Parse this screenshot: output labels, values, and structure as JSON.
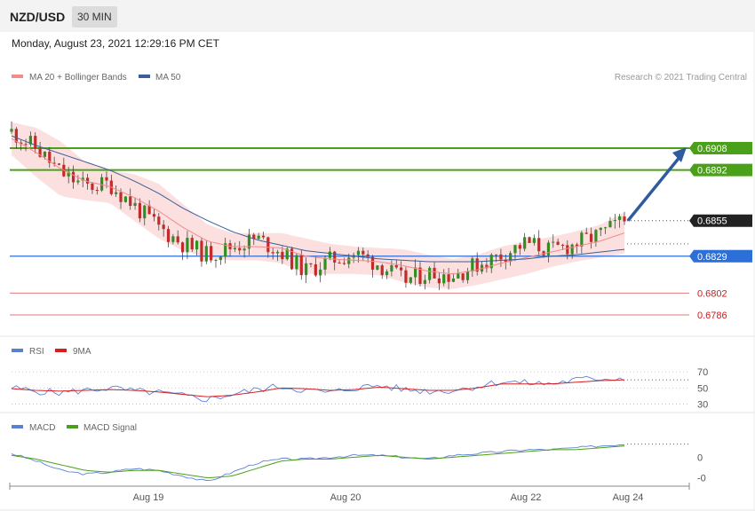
{
  "header": {
    "pair": "NZD/USD",
    "timeframe": "30 MIN",
    "datetime": "Monday, August 23, 2021 12:29:16 PM CET"
  },
  "legend": {
    "ma20_label": "MA 20 + Bollinger Bands",
    "ma50_label": "MA 50",
    "ma20_color": "#f48a8a",
    "ma50_color": "#3a5f9a",
    "credit": "Research © 2021 Trading Central"
  },
  "colors": {
    "resistance": "#4aa019",
    "support_blue": "#2c6fd6",
    "support_red": "#e07a7a",
    "bull": "#2f8f1f",
    "bear": "#c42a2a",
    "band": "#fcd9d9",
    "arrow": "#2e5a9e",
    "current": "#222222"
  },
  "chart_data": [
    {
      "type": "candlestick",
      "pane": "price",
      "ylim": [
        0.6775,
        0.6945
      ],
      "x_ticks": [
        "Aug 19",
        "Aug 20",
        "Aug 22",
        "Aug 24"
      ],
      "levels": [
        {
          "value": 0.6908,
          "label": "0.6908",
          "kind": "resistance"
        },
        {
          "value": 0.6892,
          "label": "0.6892",
          "kind": "resistance"
        },
        {
          "value": 0.6855,
          "label": "0.6855",
          "kind": "current"
        },
        {
          "value": 0.6829,
          "label": "0.6829",
          "kind": "support"
        },
        {
          "value": 0.6802,
          "label": "0.6802",
          "kind": "support-minor"
        },
        {
          "value": 0.6786,
          "label": "0.6786",
          "kind": "support-minor"
        }
      ],
      "close_path": [
        0.692,
        0.6908,
        0.689,
        0.688,
        0.6882,
        0.6866,
        0.685,
        0.6838,
        0.683,
        0.6836,
        0.6842,
        0.6832,
        0.6818,
        0.6826,
        0.6831,
        0.6823,
        0.6811,
        0.6817,
        0.6815,
        0.6823,
        0.683,
        0.6839,
        0.6833,
        0.6838,
        0.6845,
        0.6855
      ],
      "ma20_path": [
        0.6915,
        0.6905,
        0.6893,
        0.6884,
        0.688,
        0.6872,
        0.6862,
        0.685,
        0.684,
        0.6836,
        0.6836,
        0.6835,
        0.6829,
        0.6827,
        0.6826,
        0.6825,
        0.6822,
        0.6818,
        0.6816,
        0.6819,
        0.6824,
        0.6828,
        0.6832,
        0.6836,
        0.684,
        0.6846
      ],
      "ma50_path": [
        0.6917,
        0.691,
        0.6904,
        0.6898,
        0.6892,
        0.6884,
        0.6875,
        0.6864,
        0.6855,
        0.6847,
        0.6841,
        0.6837,
        0.6833,
        0.6831,
        0.6829,
        0.6827,
        0.6826,
        0.6825,
        0.6825,
        0.6825,
        0.6826,
        0.6827,
        0.6829,
        0.683,
        0.6832,
        0.6834
      ],
      "band_width_path": [
        0.0012,
        0.0018,
        0.002,
        0.0014,
        0.0012,
        0.0017,
        0.002,
        0.0017,
        0.0012,
        0.001,
        0.001,
        0.0011,
        0.0013,
        0.0011,
        0.001,
        0.001,
        0.0012,
        0.0012,
        0.0011,
        0.0011,
        0.0012,
        0.0012,
        0.0011,
        0.0011,
        0.0012,
        0.0015
      ],
      "projection": {
        "from": 0.6855,
        "to": 0.6908
      }
    },
    {
      "type": "line",
      "pane": "rsi",
      "legend": [
        "RSI",
        "9MA"
      ],
      "ylim": [
        25,
        80
      ],
      "y_ticks": [
        70,
        50,
        30
      ],
      "rsi_path": [
        50,
        46,
        44,
        47,
        50,
        46,
        44,
        40,
        36,
        42,
        48,
        52,
        47,
        44,
        50,
        53,
        48,
        46,
        47,
        52,
        58,
        56,
        55,
        60,
        62,
        62
      ],
      "ma9_path": [
        49,
        47,
        46,
        47,
        48,
        47,
        45,
        42,
        39,
        41,
        45,
        50,
        49,
        47,
        48,
        51,
        49,
        47,
        47,
        50,
        55,
        55,
        55,
        57,
        59,
        60
      ]
    },
    {
      "type": "line",
      "pane": "macd",
      "legend": [
        "MACD",
        "MACD Signal"
      ],
      "ylim": [
        -0.0014,
        0.0012
      ],
      "y_ticks": [
        {
          "value": 0,
          "label": "0"
        },
        {
          "value": -0.0011,
          "label": "-0"
        }
      ],
      "macd_path": [
        0.0002,
        -0.0002,
        -0.0007,
        -0.0009,
        -0.0008,
        -0.0006,
        -0.0007,
        -0.001,
        -0.0013,
        -0.0008,
        -0.0003,
        -0.0001,
        -0.0001,
        0.0,
        0.0001,
        0.0001,
        0.0,
        -0.0001,
        0.0001,
        0.0002,
        0.0003,
        0.0004,
        0.0004,
        0.0005,
        0.0006,
        0.0007
      ],
      "signal_path": [
        0.0001,
        -0.0001,
        -0.0004,
        -0.0007,
        -0.0008,
        -0.0007,
        -0.0007,
        -0.0009,
        -0.0011,
        -0.001,
        -0.0006,
        -0.0002,
        -0.0001,
        -0.0001,
        0.0,
        0.0001,
        0.0,
        -0.0001,
        0.0,
        0.0001,
        0.0002,
        0.0003,
        0.0004,
        0.0004,
        0.0005,
        0.0006
      ]
    }
  ]
}
